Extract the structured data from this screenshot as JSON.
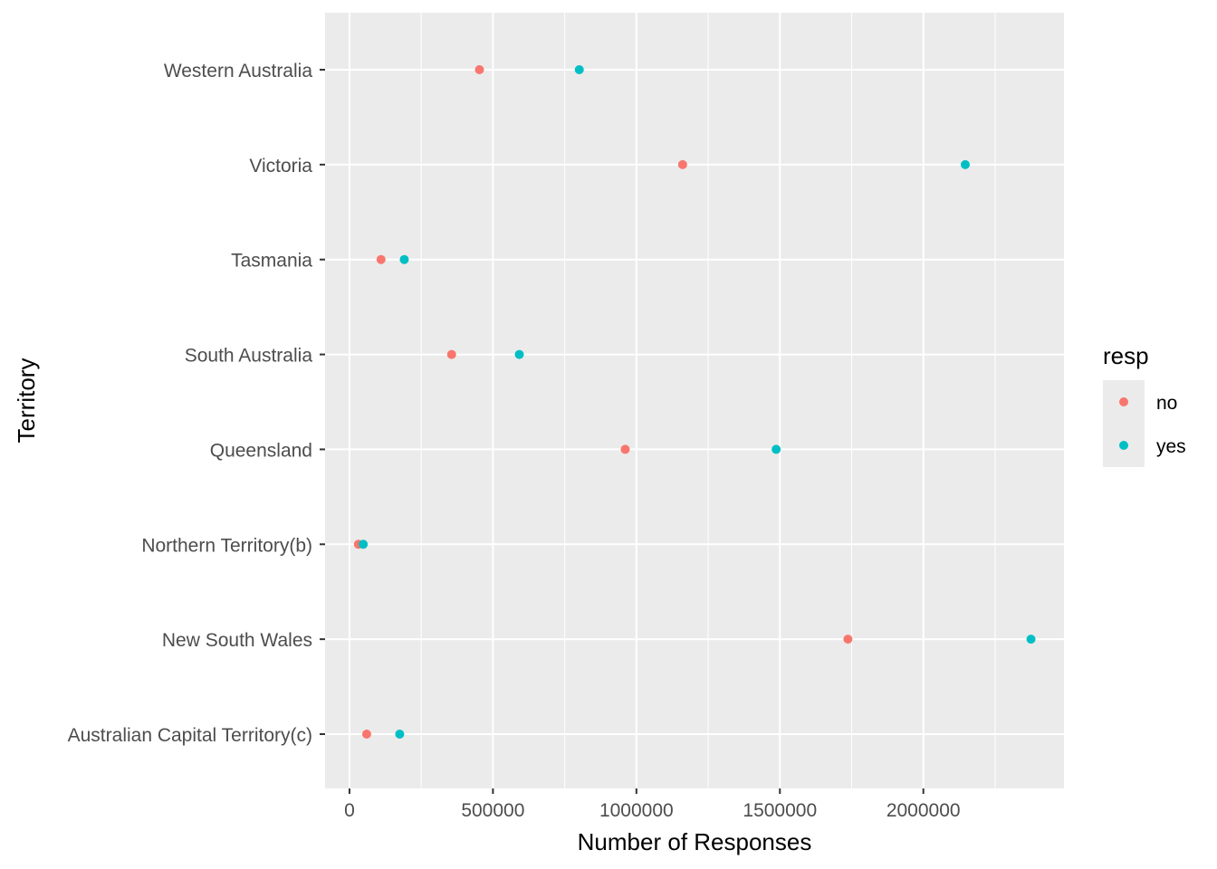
{
  "chart_data": {
    "type": "scatter",
    "title": "",
    "xlabel": "Number of Responses",
    "ylabel": "Territory",
    "xlim": [
      -85000,
      2490000
    ],
    "x_ticks": [
      0,
      500000,
      1000000,
      1500000,
      2000000
    ],
    "x_tick_labels": [
      "0",
      "500000",
      "1000000",
      "1500000",
      "2000000"
    ],
    "categories": [
      "Australian Capital Territory(c)",
      "New South Wales",
      "Northern Territory(b)",
      "Queensland",
      "South Australia",
      "Tasmania",
      "Victoria",
      "Western Australia"
    ],
    "series": [
      {
        "name": "no",
        "color": "#F8766D",
        "values": [
          60000,
          1737000,
          31000,
          961000,
          356000,
          110000,
          1161000,
          453000
        ]
      },
      {
        "name": "yes",
        "color": "#00BFC4",
        "values": [
          175000,
          2375000,
          48000,
          1487000,
          592000,
          191000,
          2146000,
          801000
        ]
      }
    ],
    "legend": {
      "title": "resp",
      "position": "right"
    },
    "grid": true,
    "panel_background": "#EBEBEB"
  }
}
